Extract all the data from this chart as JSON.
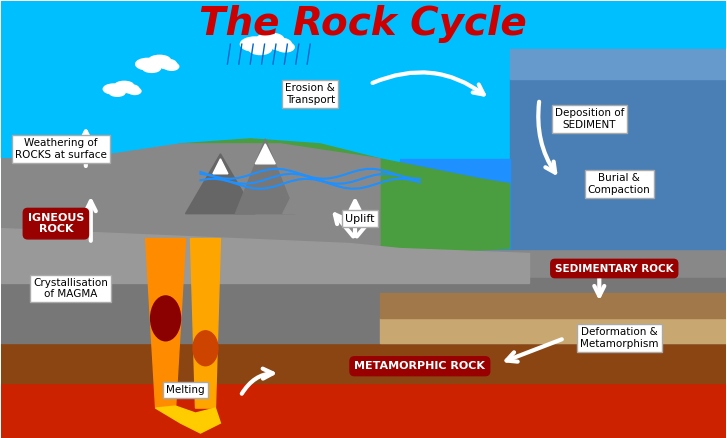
{
  "title": "The Rock Cycle",
  "title_color": "#cc0000",
  "title_fontsize": 28,
  "bg_color": "#00bfff",
  "labels": {
    "igneous_rock": "IGNEOUS\nROCK",
    "sedimentary_rock": "SEDIMENTARY ROCK",
    "metamorphic_rock": "METAMORPHIC ROCK",
    "weathering": "Weathering of\nROCKS at surface",
    "erosion": "Erosion &\nTransport",
    "deposition": "Deposition of\nSEDIMENT",
    "burial": "Burial &\nCompaction",
    "uplift": "Uplift",
    "crystallisation": "Crystallisation\nof MAGMA",
    "melting": "Melting",
    "deformation": "Deformation &\nMetamorphism"
  },
  "rock_label_bg": "#990000",
  "rock_label_fg": "#ffffff",
  "box_bg": "#ffffff",
  "box_fg": "#000000"
}
